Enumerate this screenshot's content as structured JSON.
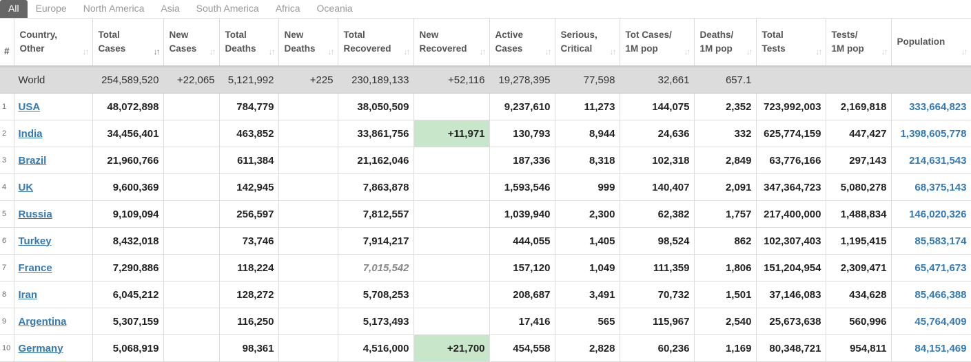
{
  "tabs": [
    "All",
    "Europe",
    "North America",
    "Asia",
    "South America",
    "Africa",
    "Oceania"
  ],
  "active_tab": "All",
  "columns": [
    [
      "#",
      ""
    ],
    [
      "Country,",
      "Other"
    ],
    [
      "Total",
      "Cases"
    ],
    [
      "New",
      "Cases"
    ],
    [
      "Total",
      "Deaths"
    ],
    [
      "New",
      "Deaths"
    ],
    [
      "Total",
      "Recovered"
    ],
    [
      "New",
      "Recovered"
    ],
    [
      "Active",
      "Cases"
    ],
    [
      "Serious,",
      "Critical"
    ],
    [
      "Tot Cases/",
      "1M pop"
    ],
    [
      "Deaths/",
      "1M pop"
    ],
    [
      "Total",
      "Tests"
    ],
    [
      "Tests/",
      "1M pop"
    ],
    [
      "Population",
      ""
    ]
  ],
  "world": {
    "name": "World",
    "values": [
      "254,589,520",
      "+22,065",
      "5,121,992",
      "+225",
      "230,189,133",
      "+52,116",
      "19,278,395",
      "77,598",
      "32,661",
      "657.1",
      "",
      "",
      ""
    ]
  },
  "rows": [
    {
      "idx": "1",
      "country": "USA",
      "values": [
        "48,072,898",
        "",
        "784,779",
        "",
        "38,050,509",
        "",
        "9,237,610",
        "11,273",
        "144,075",
        "2,352",
        "723,992,003",
        "2,169,818",
        "333,664,823"
      ]
    },
    {
      "idx": "2",
      "country": "India",
      "values": [
        "34,456,401",
        "",
        "463,852",
        "",
        "33,861,756",
        "+11,971",
        "130,793",
        "8,944",
        "24,636",
        "332",
        "625,774,159",
        "447,427",
        "1,398,605,778"
      ]
    },
    {
      "idx": "3",
      "country": "Brazil",
      "values": [
        "21,960,766",
        "",
        "611,384",
        "",
        "21,162,046",
        "",
        "187,336",
        "8,318",
        "102,318",
        "2,849",
        "63,776,166",
        "297,143",
        "214,631,543"
      ]
    },
    {
      "idx": "4",
      "country": "UK",
      "values": [
        "9,600,369",
        "",
        "142,945",
        "",
        "7,863,878",
        "",
        "1,593,546",
        "999",
        "140,407",
        "2,091",
        "347,364,723",
        "5,080,278",
        "68,375,143"
      ]
    },
    {
      "idx": "5",
      "country": "Russia",
      "values": [
        "9,109,094",
        "",
        "256,597",
        "",
        "7,812,557",
        "",
        "1,039,940",
        "2,300",
        "62,382",
        "1,757",
        "217,400,000",
        "1,488,834",
        "146,020,326"
      ]
    },
    {
      "idx": "6",
      "country": "Turkey",
      "values": [
        "8,432,018",
        "",
        "73,746",
        "",
        "7,914,217",
        "",
        "444,055",
        "1,405",
        "98,524",
        "862",
        "102,307,403",
        "1,195,415",
        "85,583,174"
      ]
    },
    {
      "idx": "7",
      "country": "France",
      "values": [
        "7,290,886",
        "",
        "118,224",
        "",
        "7,015,542",
        "",
        "157,120",
        "1,049",
        "111,359",
        "1,806",
        "151,204,954",
        "2,309,471",
        "65,471,673"
      ]
    },
    {
      "idx": "8",
      "country": "Iran",
      "values": [
        "6,045,212",
        "",
        "128,272",
        "",
        "5,708,253",
        "",
        "208,687",
        "3,491",
        "70,732",
        "1,501",
        "37,146,083",
        "434,628",
        "85,466,388"
      ]
    },
    {
      "idx": "9",
      "country": "Argentina",
      "values": [
        "5,307,159",
        "",
        "116,250",
        "",
        "5,173,493",
        "",
        "17,416",
        "565",
        "115,967",
        "2,540",
        "25,673,638",
        "560,996",
        "45,764,409"
      ]
    },
    {
      "idx": "10",
      "country": "Germany",
      "values": [
        "5,068,919",
        "",
        "98,361",
        "",
        "4,516,000",
        "+21,700",
        "454,558",
        "2,828",
        "60,236",
        "1,169",
        "80,348,721",
        "954,811",
        "84,151,469"
      ]
    }
  ],
  "colors": {
    "link": "#337ab7",
    "new_recovered_bg": "#c8e6c9",
    "world_row_bg": "#dcdcdc",
    "active_tab_bg": "#666666"
  }
}
